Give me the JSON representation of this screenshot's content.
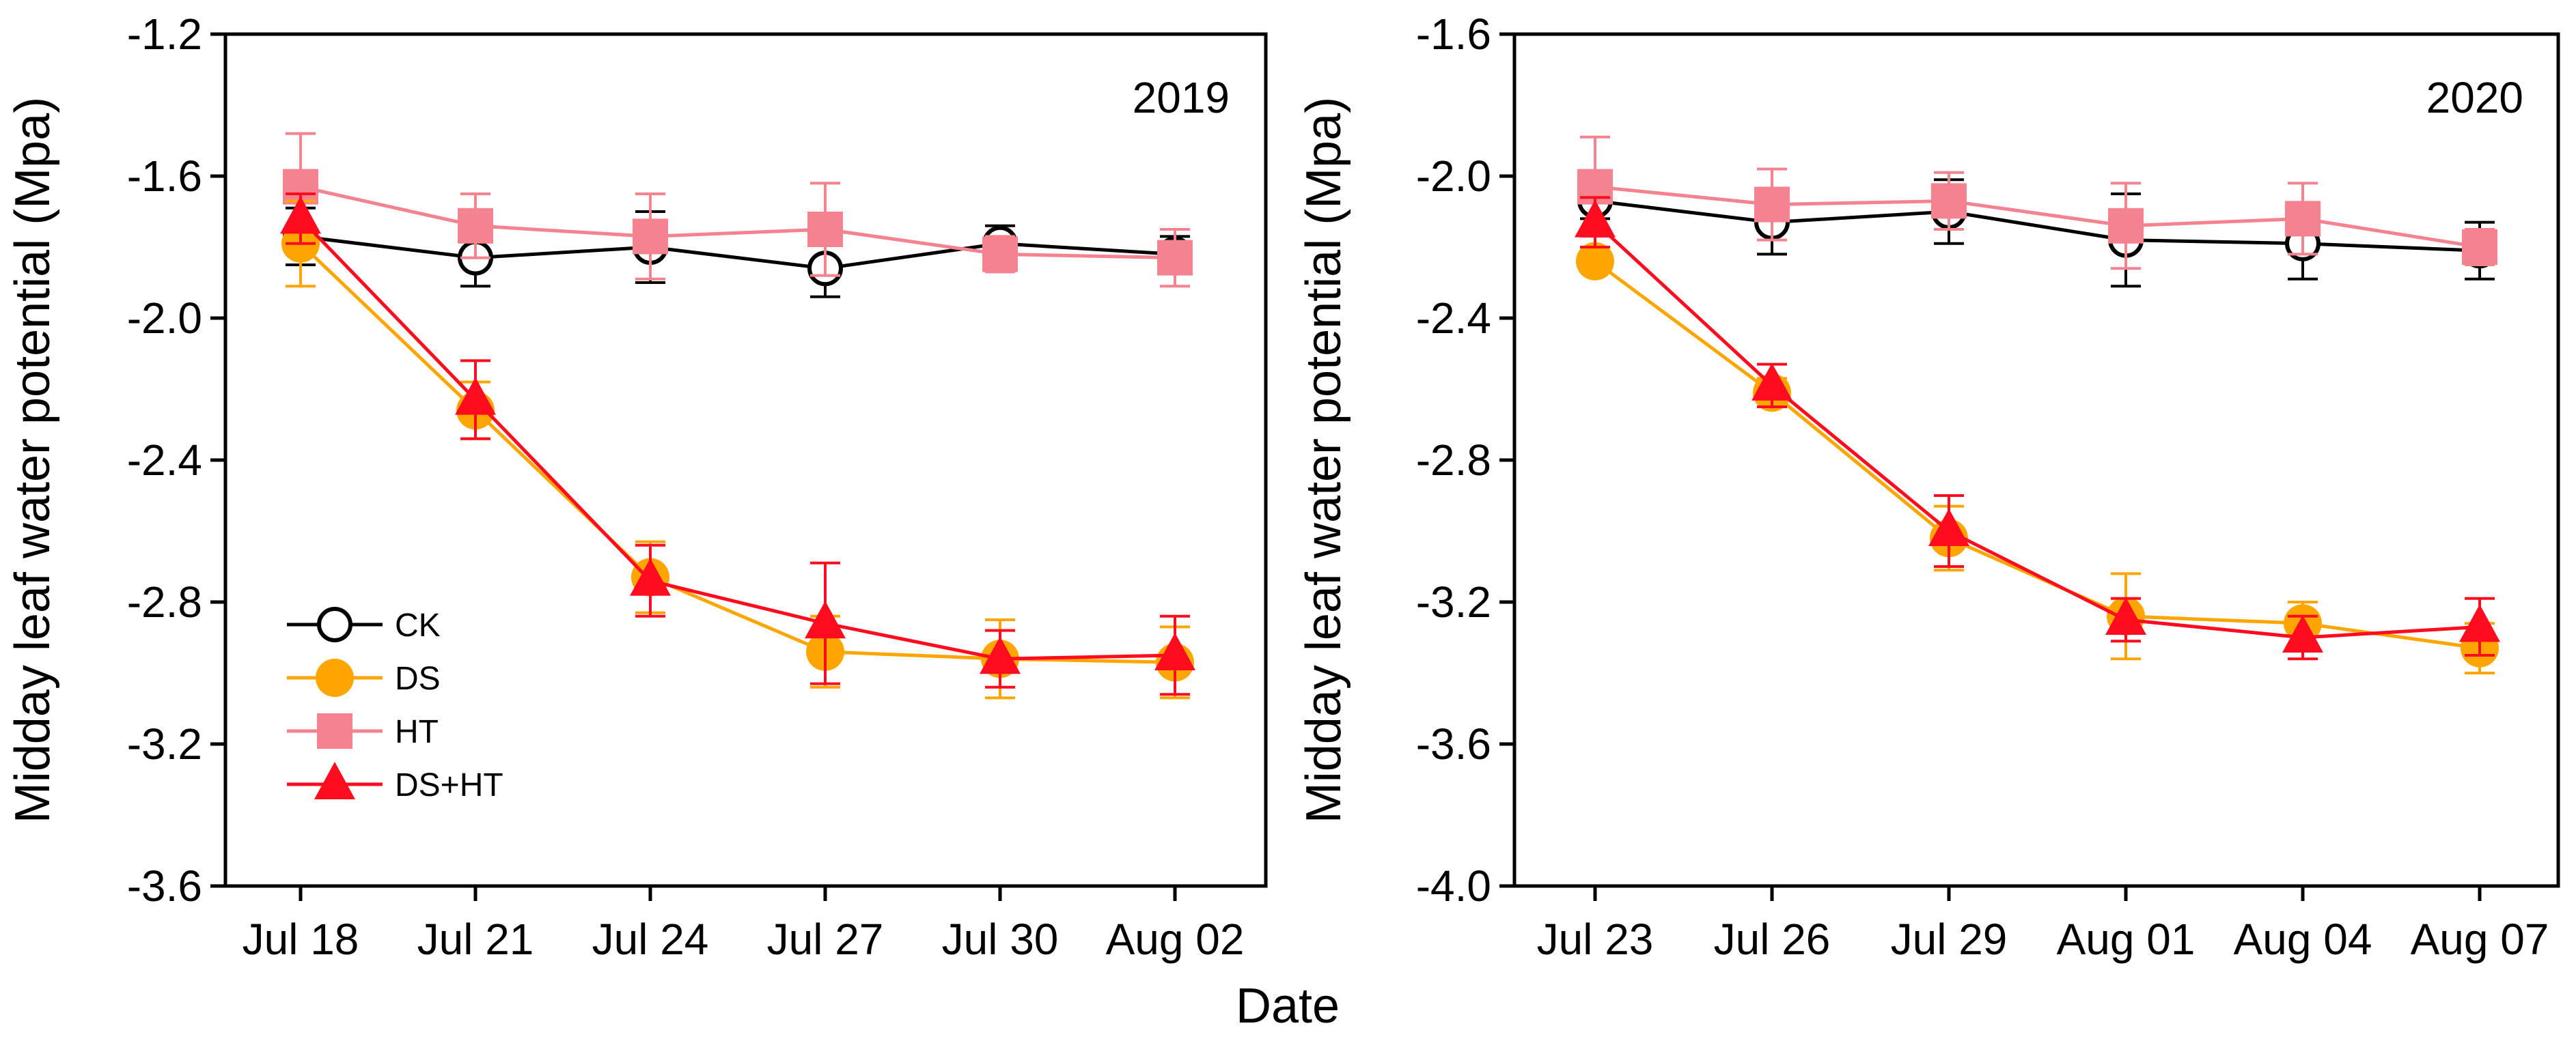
{
  "figure": {
    "shared_xlabel": "Date",
    "colors": {
      "CK": "#000000",
      "DS": "#FFA500",
      "HT": "#F4828F",
      "DS+HT": "#FF0D1F"
    },
    "markers": {
      "CK": "open-circle",
      "DS": "filled-circle",
      "HT": "filled-square",
      "DS+HT": "filled-triangle"
    }
  },
  "chart_data": [
    {
      "type": "line",
      "title": "2019",
      "xlabel": "Date",
      "ylabel": "Midday leaf water potential (Mpa)",
      "categories": [
        "Jul 18",
        "Jul 21",
        "Jul 24",
        "Jul 27",
        "Jul 30",
        "Aug 02"
      ],
      "ylim": [
        -3.6,
        -1.2
      ],
      "yticks": [
        -1.2,
        -1.6,
        -2.0,
        -2.4,
        -2.8,
        -3.2,
        -3.6
      ],
      "ytick_labels": [
        "-1.2",
        "-1.6",
        "-2.0",
        "-2.4",
        "-2.8",
        "-3.2",
        "-3.6"
      ],
      "legend": {
        "entries": [
          "CK",
          "DS",
          "HT",
          "DS+HT"
        ],
        "position": "lower-left"
      },
      "series": [
        {
          "name": "CK",
          "values": [
            -1.77,
            -1.83,
            -1.8,
            -1.86,
            -1.79,
            -1.82
          ],
          "errors": [
            0.08,
            0.08,
            0.1,
            0.08,
            0.05,
            0.05
          ]
        },
        {
          "name": "DS",
          "values": [
            -1.79,
            -2.26,
            -2.73,
            -2.94,
            -2.96,
            -2.97
          ],
          "errors": [
            0.12,
            0.08,
            0.1,
            0.1,
            0.11,
            0.1
          ]
        },
        {
          "name": "HT",
          "values": [
            -1.63,
            -1.74,
            -1.77,
            -1.75,
            -1.82,
            -1.83
          ],
          "errors": [
            0.15,
            0.09,
            0.12,
            0.13,
            0.05,
            0.08
          ]
        },
        {
          "name": "DS+HT",
          "values": [
            -1.72,
            -2.23,
            -2.74,
            -2.86,
            -2.96,
            -2.95
          ],
          "errors": [
            0.07,
            0.11,
            0.1,
            0.17,
            0.08,
            0.11
          ]
        }
      ]
    },
    {
      "type": "line",
      "title": "2020",
      "xlabel": "Date",
      "ylabel": "Midday leaf water potential (Mpa)",
      "categories": [
        "Jul 23",
        "Jul 26",
        "Jul 29",
        "Aug 01",
        "Aug 04",
        "Aug 07"
      ],
      "ylim": [
        -4.0,
        -1.6
      ],
      "yticks": [
        -1.6,
        -2.0,
        -2.4,
        -2.8,
        -3.2,
        -3.6,
        -4.0
      ],
      "ytick_labels": [
        "-1.6",
        "-2.0",
        "-2.4",
        "-2.8",
        "-3.2",
        "-3.6",
        "-4.0"
      ],
      "series": [
        {
          "name": "CK",
          "values": [
            -2.07,
            -2.13,
            -2.1,
            -2.18,
            -2.19,
            -2.21
          ],
          "errors": [
            0.05,
            0.09,
            0.09,
            0.13,
            0.1,
            0.08
          ]
        },
        {
          "name": "DS",
          "values": [
            -2.24,
            -2.61,
            -3.02,
            -3.24,
            -3.26,
            -3.33
          ],
          "errors": [
            0.03,
            0.04,
            0.09,
            0.12,
            0.06,
            0.07
          ]
        },
        {
          "name": "HT",
          "values": [
            -2.03,
            -2.08,
            -2.07,
            -2.14,
            -2.12,
            -2.2
          ],
          "errors": [
            0.14,
            0.1,
            0.08,
            0.12,
            0.1,
            0.05
          ]
        },
        {
          "name": "DS+HT",
          "values": [
            -2.13,
            -2.59,
            -3.0,
            -3.25,
            -3.3,
            -3.27
          ],
          "errors": [
            0.07,
            0.06,
            0.1,
            0.06,
            0.06,
            0.08
          ]
        }
      ]
    }
  ]
}
